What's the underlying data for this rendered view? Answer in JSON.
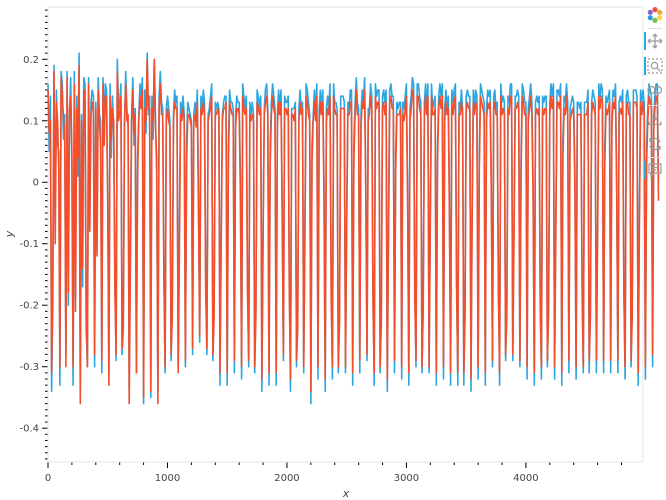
{
  "toolbar": {
    "tools": [
      {
        "name": "bokeh-logo-icon"
      },
      {
        "name": "pan-icon",
        "active": true
      },
      {
        "name": "box-zoom-icon",
        "active": true
      },
      {
        "name": "wheel-zoom-icon"
      },
      {
        "name": "save-icon"
      },
      {
        "name": "reset-icon"
      },
      {
        "name": "hover-icon",
        "active": true
      }
    ]
  },
  "chart_data": {
    "type": "line",
    "title": "",
    "xlabel": "x",
    "ylabel": "y",
    "xlim": [
      0,
      4980
    ],
    "ylim": [
      -0.455,
      0.285
    ],
    "x_ticks": [
      0,
      1000,
      2000,
      3000,
      4000
    ],
    "x_tick_labels": [
      "0",
      "1000",
      "2000",
      "3000",
      "4000"
    ],
    "y_ticks": [
      -0.4,
      -0.3,
      -0.2,
      -0.1,
      0,
      0.1,
      0.2
    ],
    "y_tick_labels": [
      "-0.4",
      "-0.3",
      "-0.2",
      "-0.1",
      "0",
      "0.1",
      "0.2"
    ],
    "grid": false,
    "legend": false,
    "x_step": 10,
    "series": [
      {
        "color": "#2ca6e0",
        "values": [
          0.16,
          0.05,
          0.14,
          -0.34,
          -0.2,
          0.19,
          -0.07,
          0.15,
          0.06,
          0.05,
          -0.33,
          0.18,
          0.16,
          0.07,
          0.11,
          -0.28,
          0.18,
          -0.2,
          0.11,
          0.17,
          0.02,
          -0.33,
          0.18,
          -0.19,
          0.14,
          0.01,
          0.21,
          -0.34,
          0.11,
          -0.17,
          0.17,
          0.16,
          -0.24,
          -0.3,
          0.17,
          -0.04,
          0.13,
          0.15,
          0.14,
          -0.3,
          0.13,
          -0.11,
          0.17,
          0.11,
          0.1,
          -0.31,
          0.17,
          0.09,
          0.16,
          0.15,
          -0.01,
          -0.31,
          0.16,
          0.04,
          0.14,
          0.08,
          -0.14,
          -0.29,
          0.2,
          0.12,
          0.13,
          0.16,
          -0.28,
          -0.24,
          0.09,
          0.18,
          0.12,
          0.09,
          -0.34,
          -0.09,
          0.11,
          0.17,
          0.06,
          0.12,
          -0.31,
          0.04,
          0.11,
          0.16,
          0.14,
          0.17,
          -0.36,
          0.15,
          0.08,
          0.21,
          0.11,
          0.14,
          -0.35,
          0.14,
          0.07,
          0.2,
          0.1,
          0.01,
          -0.34,
          0.14,
          0.18,
          0.13,
          0.12,
          -0.13,
          -0.31,
          0.12,
          0.14,
          0.12,
          0.1,
          -0.29,
          -0.18,
          0.11,
          0.15,
          0.13,
          0.14,
          -0.3,
          -0.07,
          0.13,
          0.11,
          0.14,
          0.11,
          -0.3,
          0.07,
          0.13,
          0.12,
          0.11,
          0.1,
          -0.28,
          0.11,
          0.13,
          0.1,
          0.15,
          -0.02,
          -0.26,
          0.14,
          0.12,
          0.15,
          0.13,
          -0.15,
          -0.28,
          0.11,
          0.12,
          0.14,
          0.16,
          -0.29,
          -0.2,
          0.13,
          0.12,
          0.13,
          0.12,
          -0.33,
          -0.07,
          0.11,
          0.13,
          0.14,
          0.14,
          -0.33,
          0.06,
          0.15,
          0.13,
          0.13,
          0.12,
          -0.31,
          0.11,
          0.14,
          0.13,
          0.13,
          0.01,
          -0.32,
          0.16,
          0.14,
          0.12,
          0.14,
          -0.15,
          -0.3,
          0.13,
          0.11,
          0.13,
          0.11,
          -0.31,
          -0.2,
          0.15,
          0.14,
          0.12,
          0.14,
          -0.34,
          -0.06,
          0.12,
          0.15,
          0.16,
          0.12,
          -0.33,
          0.06,
          0.13,
          0.16,
          0.14,
          0.12,
          -0.33,
          0.11,
          0.15,
          0.12,
          0.15,
          -0.03,
          -0.29,
          0.14,
          0.13,
          0.13,
          0.14,
          -0.15,
          -0.34,
          0.12,
          0.12,
          0.12,
          0.13,
          -0.3,
          -0.22,
          0.12,
          0.15,
          0.12,
          0.13,
          -0.31,
          -0.06,
          0.16,
          0.15,
          0.13,
          0.11,
          -0.36,
          0.06,
          0.11,
          0.15,
          0.11,
          0.16,
          -0.32,
          0.12,
          0.15,
          0.12,
          0.15,
          0.0,
          -0.34,
          0.12,
          0.14,
          0.12,
          0.16,
          -0.16,
          -0.32,
          0.16,
          0.13,
          0.13,
          0.12,
          -0.31,
          -0.21,
          0.14,
          0.14,
          0.14,
          0.13,
          -0.31,
          -0.04,
          0.13,
          0.12,
          0.15,
          0.15,
          -0.33,
          0.07,
          0.13,
          0.17,
          0.13,
          0.12,
          -0.31,
          0.11,
          0.15,
          0.13,
          0.17,
          0.01,
          -0.29,
          0.12,
          0.12,
          0.16,
          0.14,
          -0.17,
          -0.33,
          0.16,
          0.14,
          0.15,
          0.15,
          -0.31,
          -0.21,
          0.14,
          0.15,
          0.13,
          0.15,
          -0.34,
          -0.06,
          0.15,
          0.16,
          0.14,
          0.14,
          -0.31,
          0.05,
          0.13,
          0.12,
          0.13,
          0.13,
          -0.32,
          0.13,
          0.12,
          0.14,
          0.16,
          0.0,
          -0.33,
          0.12,
          0.14,
          0.17,
          0.16,
          -0.16,
          -0.3,
          0.16,
          0.16,
          0.14,
          0.13,
          -0.31,
          -0.19,
          0.13,
          0.16,
          0.12,
          0.16,
          -0.31,
          -0.04,
          0.16,
          0.12,
          0.13,
          0.14,
          -0.33,
          0.06,
          0.14,
          0.16,
          0.14,
          0.16,
          -0.32,
          0.12,
          0.15,
          0.12,
          0.14,
          -0.02,
          -0.33,
          0.15,
          0.13,
          0.15,
          0.16,
          -0.15,
          -0.33,
          0.13,
          0.12,
          0.15,
          0.12,
          -0.33,
          -0.2,
          0.14,
          0.15,
          0.14,
          0.14,
          -0.34,
          -0.04,
          0.15,
          0.12,
          0.15,
          0.14,
          -0.32,
          0.05,
          0.16,
          0.15,
          0.14,
          0.13,
          -0.33,
          0.12,
          0.15,
          0.14,
          0.15,
          0.01,
          -0.3,
          0.14,
          0.15,
          0.12,
          0.13,
          -0.15,
          -0.33,
          0.16,
          0.13,
          0.14,
          0.13,
          -0.29,
          -0.2,
          0.14,
          0.13,
          0.16,
          0.16,
          -0.29,
          -0.06,
          0.14,
          0.14,
          0.15,
          0.14,
          -0.3,
          0.05,
          0.16,
          0.15,
          0.13,
          0.13,
          -0.32,
          0.12,
          0.14,
          0.16,
          0.13,
          0.0,
          -0.33,
          0.13,
          0.14,
          0.13,
          0.14,
          -0.17,
          -0.32,
          0.14,
          0.13,
          0.14,
          0.14,
          -0.3,
          -0.19,
          0.13,
          0.16,
          0.14,
          0.16,
          -0.32,
          -0.06,
          0.15,
          0.15,
          0.14,
          0.16,
          -0.33,
          0.07,
          0.14,
          0.13,
          0.16,
          0.13,
          -0.31,
          0.12,
          0.13,
          0.14,
          0.13,
          0.02,
          -0.32,
          0.13,
          0.13,
          0.12,
          0.13,
          -0.15,
          -0.31,
          0.13,
          0.13,
          0.13,
          0.15,
          -0.31,
          -0.2,
          0.13,
          0.15,
          0.14,
          0.13,
          -0.31,
          -0.06,
          0.16,
          0.14,
          0.16,
          0.15,
          -0.31,
          0.06,
          0.14,
          0.13,
          0.14,
          0.15,
          -0.31,
          0.11,
          0.15,
          0.14,
          0.16,
          0.01,
          -0.31,
          0.13,
          0.14,
          0.13,
          0.15,
          -0.16,
          -0.32,
          0.14,
          0.15,
          0.13,
          0.13,
          -0.3,
          -0.2,
          0.15,
          0.15,
          0.15,
          0.14,
          -0.33,
          -0.04,
          0.15,
          0.13,
          0.15,
          0.13,
          -0.32,
          0.06,
          0.12,
          0.16,
          0.15,
          0.14,
          -0.3,
          0.11,
          0.14,
          0.16,
          0.16,
          0.0
        ]
      },
      {
        "color": "#f34e2c",
        "values": [
          0.15,
          0.08,
          0.1,
          -0.31,
          -0.15,
          0.18,
          -0.1,
          0.13,
          0.1,
          0.02,
          -0.3,
          0.17,
          0.14,
          0.1,
          0.08,
          -0.3,
          0.17,
          -0.18,
          0.12,
          0.14,
          0.05,
          -0.3,
          0.16,
          -0.21,
          0.12,
          0.04,
          0.19,
          -0.36,
          0.1,
          -0.14,
          0.15,
          0.15,
          -0.21,
          -0.3,
          0.16,
          -0.08,
          0.11,
          0.13,
          0.12,
          -0.28,
          0.12,
          -0.12,
          0.15,
          0.1,
          0.06,
          -0.29,
          0.16,
          0.06,
          0.14,
          0.14,
          -0.03,
          -0.33,
          0.14,
          0.07,
          0.12,
          0.1,
          -0.18,
          -0.28,
          0.18,
          0.1,
          0.11,
          0.14,
          -0.27,
          -0.22,
          0.1,
          0.16,
          0.1,
          0.11,
          -0.36,
          -0.13,
          0.1,
          0.15,
          0.08,
          0.11,
          -0.31,
          0.01,
          0.1,
          0.14,
          0.12,
          0.15,
          -0.35,
          0.12,
          0.1,
          0.2,
          0.12,
          0.12,
          -0.34,
          0.12,
          0.1,
          0.2,
          0.09,
          0.04,
          -0.36,
          0.12,
          0.16,
          0.11,
          0.11,
          -0.16,
          -0.3,
          0.1,
          0.12,
          0.1,
          0.09,
          -0.28,
          -0.22,
          0.1,
          0.13,
          0.12,
          0.12,
          -0.31,
          -0.11,
          0.11,
          0.1,
          0.12,
          0.1,
          -0.29,
          0.03,
          0.11,
          0.11,
          0.1,
          0.09,
          -0.27,
          0.1,
          0.11,
          0.09,
          0.13,
          -0.05,
          -0.25,
          0.12,
          0.11,
          0.13,
          0.11,
          -0.18,
          -0.27,
          0.1,
          0.11,
          0.12,
          0.14,
          -0.28,
          -0.22,
          0.11,
          0.11,
          0.12,
          0.11,
          -0.31,
          -0.1,
          0.1,
          0.12,
          0.12,
          0.13,
          -0.31,
          0.03,
          0.13,
          0.12,
          0.11,
          0.11,
          -0.29,
          0.09,
          0.12,
          0.12,
          0.11,
          -0.02,
          -0.3,
          0.14,
          0.12,
          0.11,
          0.12,
          -0.18,
          -0.29,
          0.11,
          0.1,
          0.11,
          0.1,
          -0.3,
          -0.22,
          0.13,
          0.12,
          0.11,
          0.12,
          -0.32,
          -0.09,
          0.11,
          0.13,
          0.14,
          0.11,
          -0.31,
          0.03,
          0.11,
          0.14,
          0.12,
          0.11,
          -0.31,
          0.09,
          0.13,
          0.11,
          0.13,
          -0.06,
          -0.28,
          0.12,
          0.12,
          0.11,
          0.12,
          -0.18,
          -0.32,
          0.11,
          0.11,
          0.1,
          0.12,
          -0.29,
          -0.24,
          0.1,
          0.13,
          0.11,
          0.12,
          -0.3,
          -0.09,
          0.14,
          0.13,
          0.11,
          0.1,
          -0.34,
          0.03,
          0.1,
          0.13,
          0.1,
          0.14,
          -0.3,
          0.1,
          0.13,
          0.11,
          0.13,
          -0.03,
          -0.32,
          0.1,
          0.12,
          0.11,
          0.14,
          -0.19,
          -0.3,
          0.14,
          0.12,
          0.11,
          0.11,
          -0.3,
          -0.23,
          0.12,
          0.12,
          0.12,
          0.12,
          -0.3,
          -0.07,
          0.11,
          0.11,
          0.13,
          0.13,
          -0.31,
          0.04,
          0.11,
          0.15,
          0.11,
          0.11,
          -0.29,
          0.09,
          0.13,
          0.12,
          0.15,
          -0.02,
          -0.28,
          0.1,
          0.11,
          0.14,
          0.12,
          -0.2,
          -0.31,
          0.14,
          0.12,
          0.13,
          0.13,
          -0.3,
          -0.23,
          0.12,
          0.13,
          0.11,
          0.13,
          -0.32,
          -0.09,
          0.13,
          0.14,
          0.12,
          0.12,
          -0.29,
          0.02,
          0.11,
          0.11,
          0.11,
          0.12,
          -0.3,
          0.11,
          0.1,
          0.12,
          0.14,
          -0.03,
          -0.31,
          0.1,
          0.12,
          0.15,
          0.14,
          -0.19,
          -0.29,
          0.14,
          0.14,
          0.12,
          0.11,
          -0.3,
          -0.21,
          0.11,
          0.14,
          0.11,
          0.14,
          -0.3,
          -0.07,
          0.14,
          0.11,
          0.11,
          0.12,
          -0.31,
          0.03,
          0.12,
          0.14,
          0.12,
          0.14,
          -0.3,
          0.1,
          0.13,
          0.11,
          0.12,
          -0.05,
          -0.31,
          0.13,
          0.11,
          0.13,
          0.14,
          -0.18,
          -0.31,
          0.11,
          0.11,
          0.13,
          0.11,
          -0.31,
          -0.22,
          0.12,
          0.13,
          0.12,
          0.12,
          -0.32,
          -0.07,
          0.13,
          0.11,
          0.13,
          0.12,
          -0.3,
          0.02,
          0.14,
          0.13,
          0.12,
          0.11,
          -0.31,
          0.1,
          0.13,
          0.12,
          0.13,
          -0.02,
          -0.29,
          0.12,
          0.13,
          0.11,
          0.11,
          -0.18,
          -0.31,
          0.14,
          0.11,
          0.12,
          0.11,
          -0.28,
          -0.22,
          0.12,
          0.11,
          0.14,
          0.14,
          -0.28,
          -0.09,
          0.12,
          0.12,
          0.13,
          0.12,
          -0.29,
          0.02,
          0.14,
          0.13,
          0.11,
          0.11,
          -0.3,
          0.1,
          0.12,
          0.14,
          0.11,
          -0.03,
          -0.31,
          0.11,
          0.12,
          0.11,
          0.12,
          -0.2,
          -0.3,
          0.12,
          0.11,
          0.12,
          0.12,
          -0.29,
          -0.21,
          0.11,
          0.14,
          0.12,
          0.14,
          -0.3,
          -0.09,
          0.13,
          0.13,
          0.12,
          0.14,
          -0.31,
          0.04,
          0.12,
          0.11,
          0.14,
          0.11,
          -0.29,
          0.1,
          0.11,
          0.12,
          0.11,
          -0.01,
          -0.3,
          0.11,
          0.11,
          0.11,
          0.11,
          -0.18,
          -0.3,
          0.11,
          0.11,
          0.11,
          0.13,
          -0.29,
          -0.22,
          0.11,
          0.13,
          0.12,
          0.11,
          -0.29,
          -0.09,
          0.14,
          0.12,
          0.14,
          0.13,
          -0.29,
          0.03,
          0.12,
          0.11,
          0.12,
          0.13,
          -0.29,
          0.09,
          0.13,
          0.12,
          0.14,
          -0.02,
          -0.29,
          0.11,
          0.12,
          0.11,
          0.13,
          -0.19,
          -0.3,
          0.12,
          0.13,
          0.11,
          0.11,
          -0.29,
          -0.22,
          0.13,
          0.13,
          0.13,
          0.12,
          -0.31,
          -0.07,
          0.13,
          0.11,
          0.13,
          0.11,
          -0.3,
          0.03,
          0.1,
          0.14,
          0.13,
          0.12,
          -0.28,
          0.09,
          0.12,
          0.14,
          0.14,
          -0.03
        ]
      }
    ]
  }
}
